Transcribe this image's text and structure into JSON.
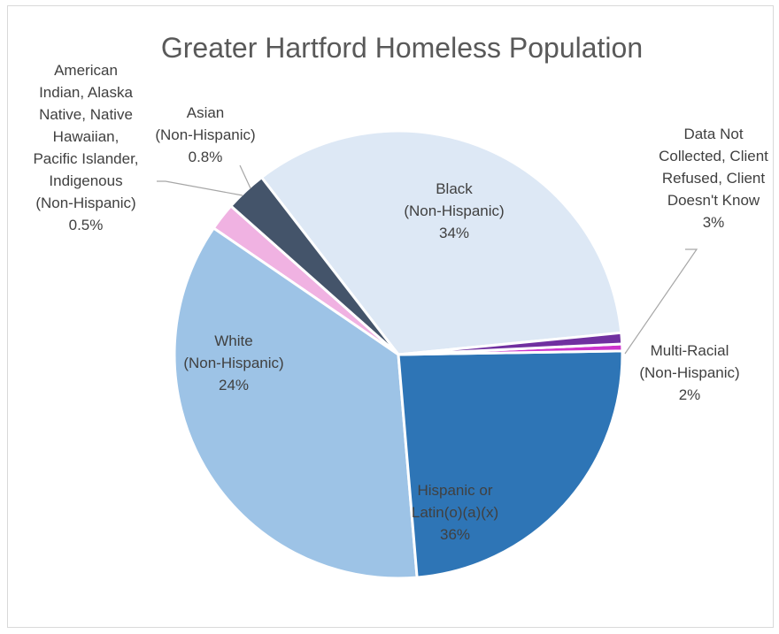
{
  "chart_data": {
    "type": "pie",
    "title": "Greater Hartford Homeless Population",
    "unit": "%",
    "legend": "none",
    "slices": [
      {
        "label": "Black (Non-Hispanic)",
        "value": 34,
        "display": "34%",
        "color": "#dde8f5"
      },
      {
        "label": "Data Not Collected, Client Refused, Client Doesn't Know",
        "value": 3,
        "display": "3%",
        "color": "#44546a"
      },
      {
        "label": "Multi-Racial (Non-Hispanic)",
        "value": 2,
        "display": "2%",
        "color": "#f0b2e2"
      },
      {
        "label": "Hispanic or Latin(o)(a)(x)",
        "value": 36,
        "display": "36%",
        "color": "#9dc3e6"
      },
      {
        "label": "White (Non-Hispanic)",
        "value": 24,
        "display": "24%",
        "color": "#2e75b6"
      },
      {
        "label": "American Indian, Alaska Native, Native Hawaiian, Pacific Islander, Indigenous (Non-Hispanic)",
        "value": 0.5,
        "display": "0.5%",
        "color": "#cc33cc"
      },
      {
        "label": "Asian (Non-Hispanic)",
        "value": 0.8,
        "display": "0.8%",
        "color": "#7030a0"
      }
    ]
  }
}
